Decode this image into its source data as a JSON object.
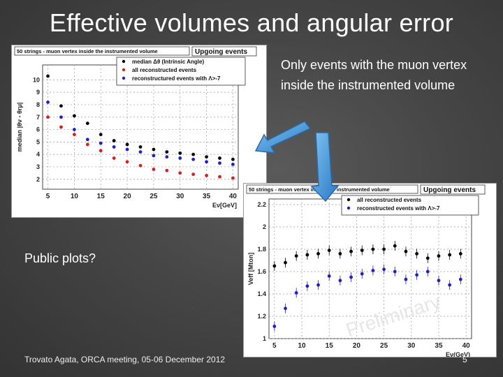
{
  "slide": {
    "title": "Effective volumes and angular error",
    "note": "Only events with the muon vertex inside the instrumented volume",
    "public_question": "Public plots?",
    "footer": "Trovato Agata, ORCA meeting, 05-06 December 2012",
    "page_number": "5"
  },
  "chart_data": [
    {
      "type": "scatter",
      "header_left": "50 strings - muon vertex inside the instrumented volume",
      "header_right": "Upgoing events",
      "ylabel": "median |θν - θrμ|",
      "xlabel": "Eν[GeV]",
      "xlim": [
        4,
        41
      ],
      "ylim": [
        1.2,
        11.2
      ],
      "xticks": [
        5,
        10,
        15,
        20,
        25,
        30,
        35,
        40
      ],
      "yticks": [
        2,
        3,
        4,
        5,
        6,
        7,
        8,
        9,
        10
      ],
      "grid": true,
      "legend_position": "top",
      "x": [
        5,
        7.5,
        10,
        12.5,
        15,
        17.5,
        20,
        22.5,
        25,
        27.5,
        30,
        32.5,
        35,
        37.5,
        40
      ],
      "series": [
        {
          "name": "median Δθ (Intrinsic Angle)",
          "color": "#000000",
          "values": [
            10.3,
            7.9,
            7.1,
            6.5,
            5.6,
            5.1,
            4.8,
            4.6,
            4.4,
            4.2,
            4.1,
            4.0,
            3.8,
            3.7,
            3.6
          ]
        },
        {
          "name": "all reconstructed events",
          "color": "#d42020",
          "values": [
            7.0,
            6.2,
            5.6,
            4.8,
            4.3,
            3.7,
            3.4,
            3.1,
            2.8,
            2.7,
            2.5,
            2.4,
            2.3,
            2.2,
            2.1
          ]
        },
        {
          "name": "reconstructured events with Λ>-7",
          "color": "#2020c0",
          "values": [
            8.2,
            7.0,
            6.0,
            5.2,
            4.9,
            4.6,
            4.4,
            4.2,
            3.9,
            3.8,
            3.7,
            3.6,
            3.4,
            3.3,
            3.2
          ]
        }
      ]
    },
    {
      "type": "scatter",
      "header_left": "50 strings - muon vertex inside the instrumented volume",
      "header_right": "Upgoing events",
      "ylabel": "Veff [Mton]",
      "xlabel": "Eν(GeV)",
      "xlim": [
        4,
        41
      ],
      "ylim": [
        1.0,
        2.25
      ],
      "xticks": [
        5,
        10,
        15,
        20,
        25,
        30,
        35,
        40
      ],
      "yticks": [
        1,
        1.2,
        1.4,
        1.6,
        1.8,
        2,
        2.2
      ],
      "grid": true,
      "legend_position": "top",
      "watermark": "Preliminary",
      "x": [
        5,
        7,
        9,
        11,
        13,
        15,
        17,
        19,
        21,
        23,
        25,
        27,
        29,
        31,
        33,
        35,
        37,
        39
      ],
      "series": [
        {
          "name": "all reconstructed events",
          "color": "#000000",
          "values": [
            1.65,
            1.68,
            1.74,
            1.75,
            1.76,
            1.79,
            1.76,
            1.78,
            1.79,
            1.8,
            1.8,
            1.83,
            1.78,
            1.76,
            1.72,
            1.74,
            1.75,
            1.76
          ]
        },
        {
          "name": "reconstructed events with Λ>-7",
          "color": "#2020c0",
          "values": [
            1.11,
            1.27,
            1.41,
            1.47,
            1.48,
            1.56,
            1.52,
            1.55,
            1.58,
            1.61,
            1.62,
            1.6,
            1.53,
            1.57,
            1.6,
            1.52,
            1.48,
            1.53
          ]
        }
      ]
    }
  ]
}
